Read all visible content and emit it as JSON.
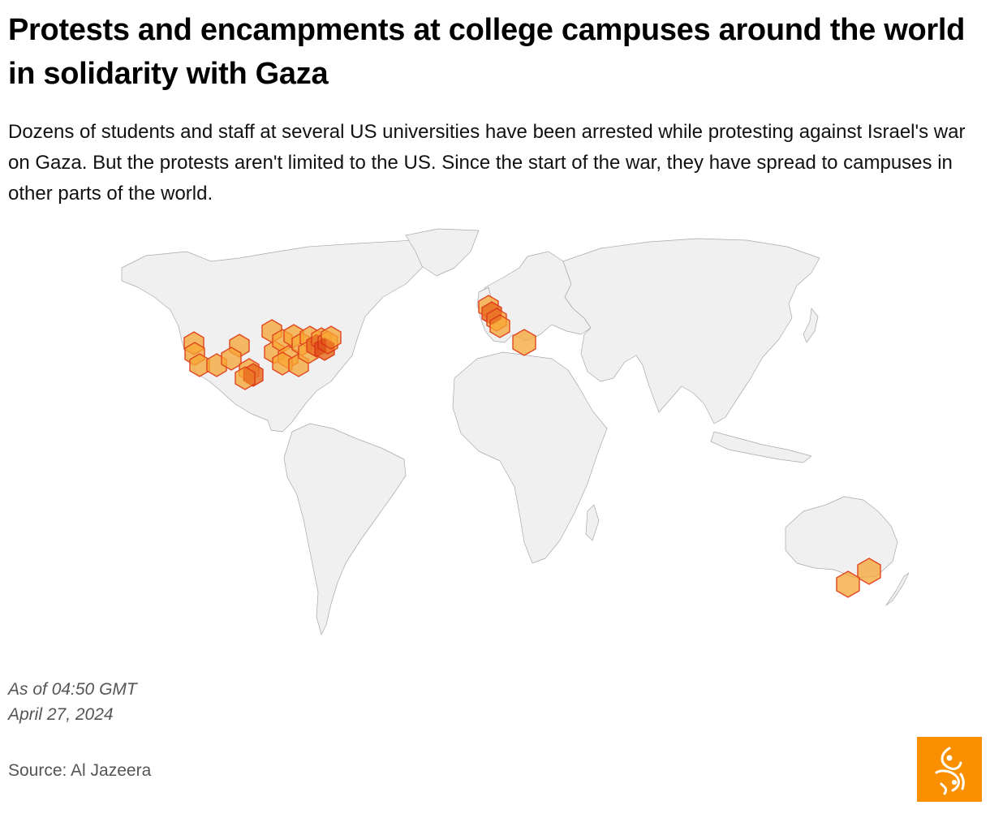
{
  "header": {
    "title": "Protests and encampments at college campuses around the world in solidarity with Gaza",
    "subtitle": "Dozens of students and staff at several US universities have been arrested while protesting against Israel's war on Gaza. But the protests aren't limited to the US. Since the start of the war, they have spread to campuses in other parts of the world."
  },
  "footer": {
    "as_of": "As of 04:50 GMT",
    "date": "April 27, 2024",
    "source": "Source: Al Jazeera"
  },
  "map": {
    "land_color": "#f0f0f0",
    "border_color": "#9a9a9a",
    "marker_fill": "#f7a533",
    "marker_stroke": "#e0451f",
    "marker_overlap_color": "#d11f0b",
    "marker_shape": "hexagon"
  },
  "logo": {
    "name": "al-jazeera-logo",
    "background": "#fa9000"
  }
}
